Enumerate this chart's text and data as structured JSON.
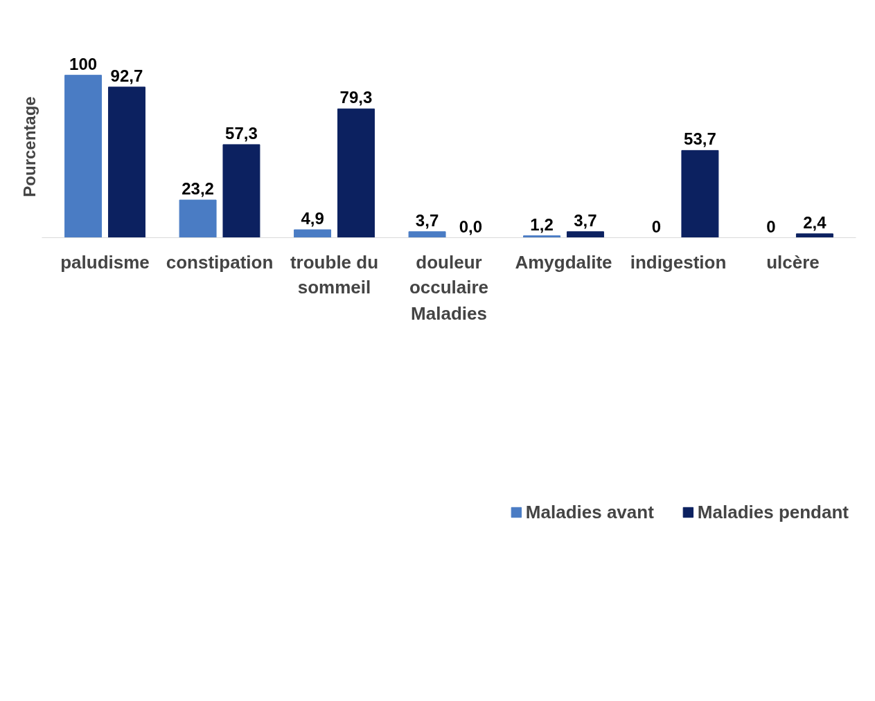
{
  "chart_data": {
    "type": "bar",
    "xlabel": "Maladies",
    "ylabel": "Pourcentage",
    "categories": [
      "paludisme",
      "constipation",
      "trouble du sommeil",
      "douleur occulaire",
      "Amygdalite",
      "indigestion",
      "ulcère"
    ],
    "series": [
      {
        "name": "Maladies avant",
        "color": "#4a7cc4",
        "values": [
          100,
          23.2,
          4.9,
          3.7,
          1.2,
          0,
          0
        ],
        "value_labels": [
          "100",
          "23,2",
          "4,9",
          "3,7",
          "1,2",
          "0",
          "0"
        ]
      },
      {
        "name": "Maladies pendant",
        "color": "#0c2160",
        "values": [
          92.7,
          57.3,
          79.3,
          0,
          3.7,
          53.7,
          2.4
        ],
        "value_labels": [
          "92,7",
          "57,3",
          "79,3",
          "0,0",
          "3,7",
          "53,7",
          "2,4"
        ]
      }
    ],
    "legend": "bottom",
    "grid": false
  }
}
